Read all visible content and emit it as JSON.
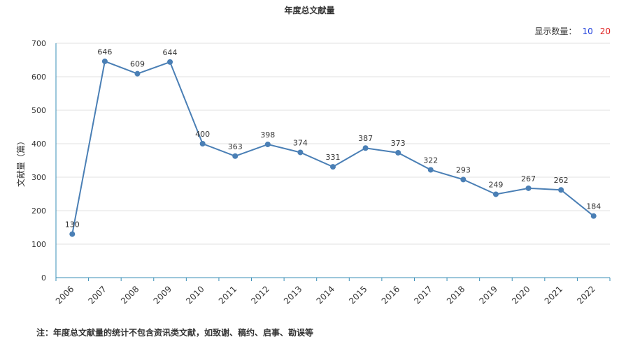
{
  "title": "年度总文献量",
  "display_count": {
    "label": "显示数量：",
    "options": [
      "10",
      "20"
    ],
    "colors": [
      "#1f3fdc",
      "#e02020"
    ]
  },
  "note": "注：年度总文献量的统计不包含资讯类文献，如致谢、稿约、启事、勘误等",
  "colors": {
    "line": "#4a7fb5",
    "axis": "#3a8fb7",
    "grid": "#e0e0e0",
    "text": "#333333"
  },
  "chart_data": {
    "type": "line",
    "title": "年度总文献量",
    "ylabel": "文献量（篇）",
    "xlabel": "",
    "ylim": [
      0,
      700
    ],
    "yticks": [
      0,
      100,
      200,
      300,
      400,
      500,
      600,
      700
    ],
    "grid": true,
    "categories": [
      "2006",
      "2007",
      "2008",
      "2009",
      "2010",
      "2011",
      "2012",
      "2013",
      "2014",
      "2015",
      "2016",
      "2017",
      "2018",
      "2019",
      "2020",
      "2021",
      "2022"
    ],
    "series": [
      {
        "values": [
          130,
          646,
          609,
          644,
          400,
          363,
          398,
          374,
          331,
          387,
          373,
          322,
          293,
          249,
          267,
          262,
          184
        ]
      }
    ]
  }
}
